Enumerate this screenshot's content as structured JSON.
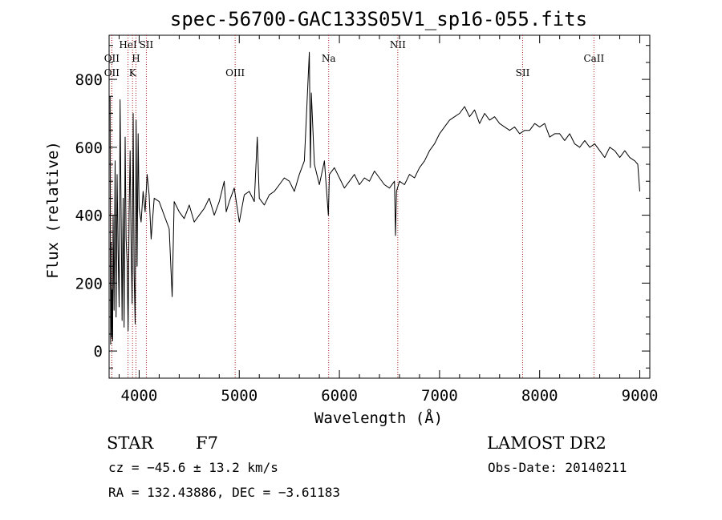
{
  "chart_data": {
    "type": "line",
    "title": "spec-56700-GAC133S05V1_sp16-055.fits",
    "xlabel": "Wavelength (Å)",
    "ylabel": "Flux (relative)",
    "xlim": [
      3700,
      9100
    ],
    "ylim": [
      -80,
      930
    ],
    "xticks": [
      4000,
      5000,
      6000,
      7000,
      8000,
      9000
    ],
    "yticks": [
      0,
      200,
      400,
      600,
      800
    ],
    "grid": false,
    "line_color": "#000000",
    "marker_color": "#b22222",
    "series": [
      {
        "x": [
          3710,
          3715,
          3720,
          3725,
          3730,
          3735,
          3740,
          3745,
          3750,
          3760,
          3770,
          3780,
          3790,
          3800,
          3810,
          3820,
          3830,
          3840,
          3850,
          3860,
          3870,
          3880,
          3890,
          3900,
          3910,
          3920,
          3930,
          3940,
          3950,
          3960,
          3970,
          3980,
          3990,
          4000,
          4020,
          4040,
          4060,
          4080,
          4100,
          4120,
          4150,
          4200,
          4250,
          4300,
          4330,
          4350,
          4400,
          4450,
          4500,
          4550,
          4600,
          4650,
          4700,
          4750,
          4800,
          4850,
          4870,
          4900,
          4950,
          5000,
          5050,
          5100,
          5150,
          5180,
          5200,
          5250,
          5300,
          5350,
          5400,
          5450,
          5500,
          5550,
          5600,
          5650,
          5700,
          5710,
          5720,
          5750,
          5800,
          5850,
          5890,
          5900,
          5950,
          6000,
          6050,
          6100,
          6150,
          6200,
          6250,
          6300,
          6350,
          6400,
          6450,
          6500,
          6550,
          6560,
          6570,
          6600,
          6650,
          6700,
          6750,
          6800,
          6850,
          6900,
          6950,
          7000,
          7050,
          7100,
          7150,
          7200,
          7250,
          7300,
          7350,
          7400,
          7450,
          7500,
          7550,
          7600,
          7650,
          7700,
          7750,
          7800,
          7850,
          7900,
          7950,
          8000,
          8050,
          8100,
          8150,
          8200,
          8250,
          8300,
          8350,
          8400,
          8450,
          8500,
          8550,
          8600,
          8650,
          8700,
          8750,
          8800,
          8850,
          8900,
          8950,
          8980,
          9000
        ],
        "y": [
          750,
          20,
          320,
          40,
          180,
          30,
          400,
          260,
          120,
          560,
          100,
          520,
          300,
          130,
          740,
          400,
          90,
          450,
          70,
          630,
          330,
          260,
          60,
          410,
          590,
          300,
          140,
          700,
          230,
          80,
          680,
          250,
          640,
          420,
          380,
          470,
          410,
          520,
          460,
          330,
          450,
          440,
          400,
          360,
          160,
          440,
          410,
          390,
          430,
          380,
          400,
          420,
          450,
          400,
          440,
          500,
          410,
          440,
          480,
          380,
          460,
          470,
          440,
          630,
          450,
          430,
          460,
          470,
          490,
          510,
          500,
          470,
          520,
          560,
          880,
          540,
          760,
          550,
          490,
          560,
          400,
          520,
          540,
          510,
          480,
          500,
          520,
          490,
          510,
          500,
          530,
          510,
          490,
          480,
          500,
          340,
          470,
          500,
          490,
          520,
          510,
          540,
          560,
          590,
          610,
          640,
          660,
          680,
          690,
          700,
          720,
          690,
          710,
          670,
          700,
          680,
          690,
          670,
          660,
          650,
          660,
          640,
          650,
          650,
          670,
          660,
          670,
          630,
          640,
          640,
          620,
          640,
          610,
          600,
          620,
          600,
          610,
          590,
          570,
          600,
          590,
          570,
          590,
          570,
          560,
          550,
          470
        ]
      }
    ],
    "line_markers": [
      {
        "label": "OII",
        "wavelength": 3727,
        "row": 1
      },
      {
        "label": "OII",
        "wavelength": 3727,
        "row": 2
      },
      {
        "label": "HeI",
        "wavelength": 3889,
        "row": 0
      },
      {
        "label": "H",
        "wavelength": 3968,
        "row": 1
      },
      {
        "label": "K",
        "wavelength": 3934,
        "row": 2
      },
      {
        "label": "SII",
        "wavelength": 4072,
        "row": 0
      },
      {
        "label": "OIII",
        "wavelength": 4959,
        "row": 2
      },
      {
        "label": "Na",
        "wavelength": 5893,
        "row": 1
      },
      {
        "label": "NII",
        "wavelength": 6583,
        "row": 0
      },
      {
        "label": "SII",
        "wavelength": 7830,
        "row": 2
      },
      {
        "label": "CaII",
        "wavelength": 8542,
        "row": 1
      }
    ]
  },
  "info": {
    "class_label": "STAR",
    "subclass": "F7",
    "survey": "LAMOST DR2",
    "cz": "cz = −45.6 ± 13.2 km/s",
    "obs_date": "Obs-Date: 20140211",
    "coords": "RA = 132.43886, DEC =  −3.61183"
  }
}
